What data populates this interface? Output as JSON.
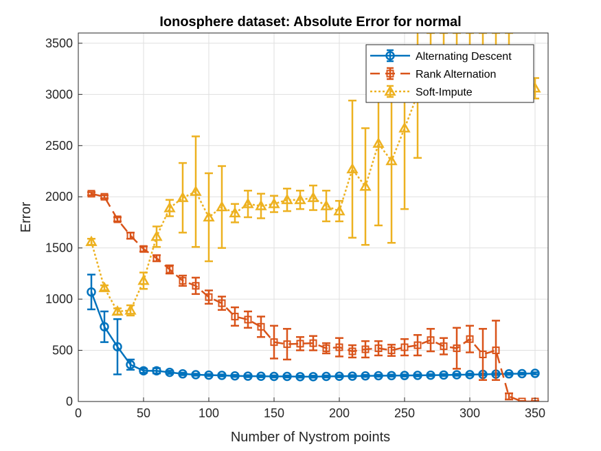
{
  "chart_data": {
    "type": "line",
    "title": "Ionosphere dataset: Absolute Error for normal",
    "xlabel": "Number of Nystrom points",
    "ylabel": "Error",
    "xlim": [
      0,
      360
    ],
    "ylim": [
      0,
      3600
    ],
    "xticks": [
      0,
      50,
      100,
      150,
      200,
      250,
      300,
      350
    ],
    "yticks": [
      0,
      500,
      1000,
      1500,
      2000,
      2500,
      3000,
      3500
    ],
    "grid": true,
    "legend_position": "top-right",
    "x": [
      10,
      20,
      30,
      40,
      50,
      60,
      70,
      80,
      90,
      100,
      110,
      120,
      130,
      140,
      150,
      160,
      170,
      180,
      190,
      200,
      210,
      220,
      230,
      240,
      250,
      260,
      270,
      280,
      290,
      300,
      310,
      320,
      330,
      340,
      350
    ],
    "series": [
      {
        "name": "Alternating Descent",
        "color": "#0072BD",
        "line_style": "solid",
        "marker": "circle",
        "values": [
          1070,
          730,
          535,
          360,
          300,
          300,
          285,
          270,
          262,
          258,
          255,
          250,
          248,
          247,
          245,
          245,
          243,
          243,
          245,
          247,
          248,
          250,
          252,
          253,
          254,
          255,
          257,
          259,
          261,
          263,
          265,
          268,
          270,
          272,
          275
        ],
        "errors": [
          170,
          150,
          270,
          50,
          20,
          25,
          15,
          12,
          10,
          10,
          10,
          10,
          10,
          10,
          10,
          10,
          10,
          10,
          10,
          10,
          10,
          10,
          10,
          10,
          10,
          10,
          10,
          10,
          10,
          10,
          10,
          10,
          10,
          10,
          10
        ]
      },
      {
        "name": "Rank Alternation",
        "color": "#D95319",
        "line_style": "dashed",
        "marker": "square",
        "values": [
          2030,
          2000,
          1780,
          1620,
          1490,
          1400,
          1290,
          1180,
          1130,
          1020,
          960,
          830,
          800,
          730,
          580,
          560,
          565,
          570,
          520,
          530,
          490,
          510,
          520,
          500,
          530,
          550,
          600,
          540,
          520,
          610,
          460,
          500,
          50,
          0,
          0
        ],
        "errors": [
          15,
          15,
          20,
          30,
          25,
          30,
          40,
          50,
          80,
          65,
          65,
          90,
          80,
          100,
          160,
          150,
          65,
          70,
          50,
          90,
          60,
          80,
          70,
          55,
          80,
          100,
          110,
          80,
          200,
          130,
          250,
          290,
          30,
          5,
          5
        ]
      },
      {
        "name": "Soft-Impute",
        "color": "#EDB120",
        "line_style": "dotted",
        "marker": "triangle",
        "values": [
          1560,
          1110,
          880,
          890,
          1180,
          1610,
          1890,
          1990,
          2050,
          1800,
          1900,
          1840,
          1930,
          1910,
          1930,
          1970,
          1970,
          1990,
          1910,
          1860,
          2270,
          2100,
          2520,
          2350,
          2670,
          3000,
          3300,
          3300,
          3300,
          3300,
          3300,
          3300,
          3300,
          3080,
          3060
        ],
        "errors": [
          30,
          25,
          30,
          50,
          80,
          100,
          80,
          340,
          540,
          430,
          400,
          90,
          130,
          120,
          80,
          110,
          90,
          120,
          150,
          100,
          670,
          570,
          800,
          800,
          790,
          620,
          300,
          300,
          300,
          300,
          300,
          300,
          300,
          100,
          100
        ]
      }
    ]
  }
}
